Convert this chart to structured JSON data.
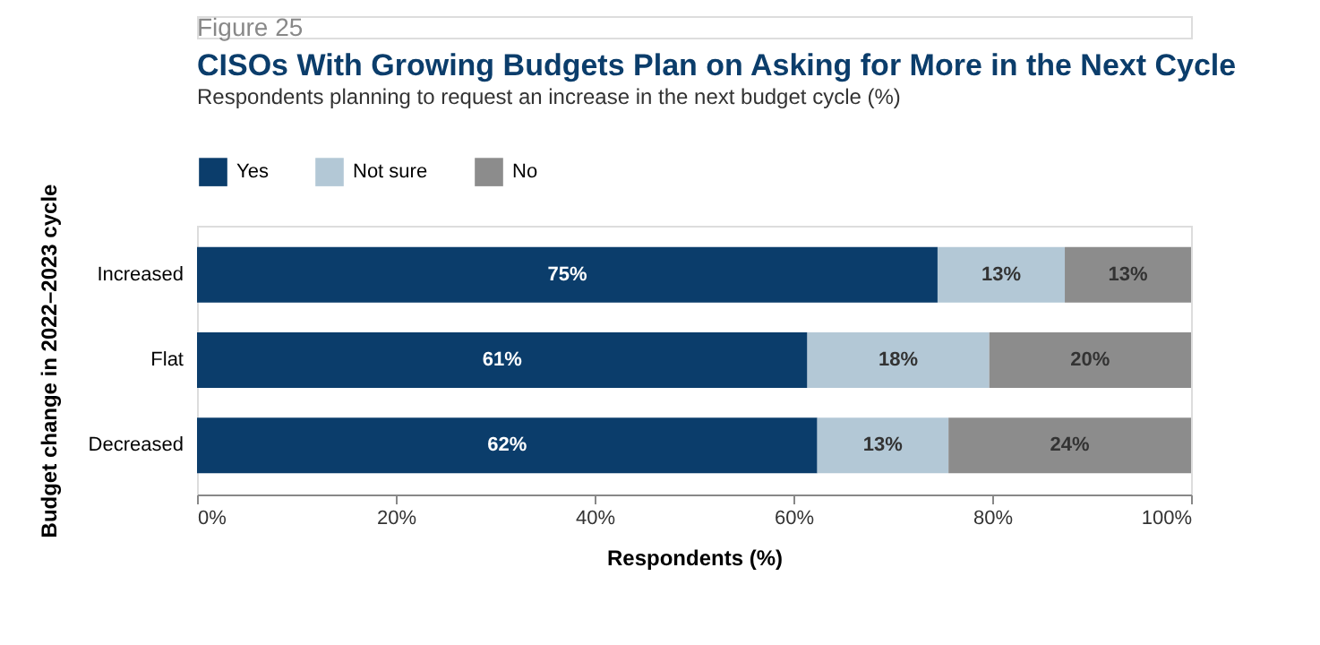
{
  "chart_data": {
    "type": "bar",
    "orientation": "horizontal",
    "stacked": true,
    "title": "CISOs With Growing Budgets Plan on Asking for More in the Next Cycle",
    "subtitle": "Respondents planning to request an increase in the next budget cycle (%)",
    "annotations": [
      "Figure 25"
    ],
    "xlabel": "Respondents (%)",
    "ylabel": "Budget change in 2022–2023 cycle",
    "categories": [
      "Increased",
      "Flat",
      "Decreased"
    ],
    "series": [
      {
        "name": "Yes",
        "color": "#0b3d6b",
        "values": [
          74.5,
          61.4,
          62.4
        ],
        "value_labels": [
          "75%",
          "61%",
          "62%"
        ]
      },
      {
        "name": "Not sure",
        "color": "#b3c8d6",
        "values": [
          12.8,
          18.3,
          13.2
        ],
        "value_labels": [
          "13%",
          "18%",
          "13%"
        ]
      },
      {
        "name": "No",
        "color": "#8c8c8c",
        "values": [
          12.7,
          20.3,
          24.4
        ],
        "value_labels": [
          "13%",
          "20%",
          "24%"
        ]
      }
    ],
    "xlim": [
      0,
      100
    ],
    "xticks": [
      {
        "value": 0,
        "label": "0%"
      },
      {
        "value": 20,
        "label": "20%"
      },
      {
        "value": 40,
        "label": "40%"
      },
      {
        "value": 60,
        "label": "60%"
      },
      {
        "value": 80,
        "label": "80%"
      },
      {
        "value": 100,
        "label": "100%"
      }
    ],
    "grid": false,
    "legend": "top left"
  }
}
